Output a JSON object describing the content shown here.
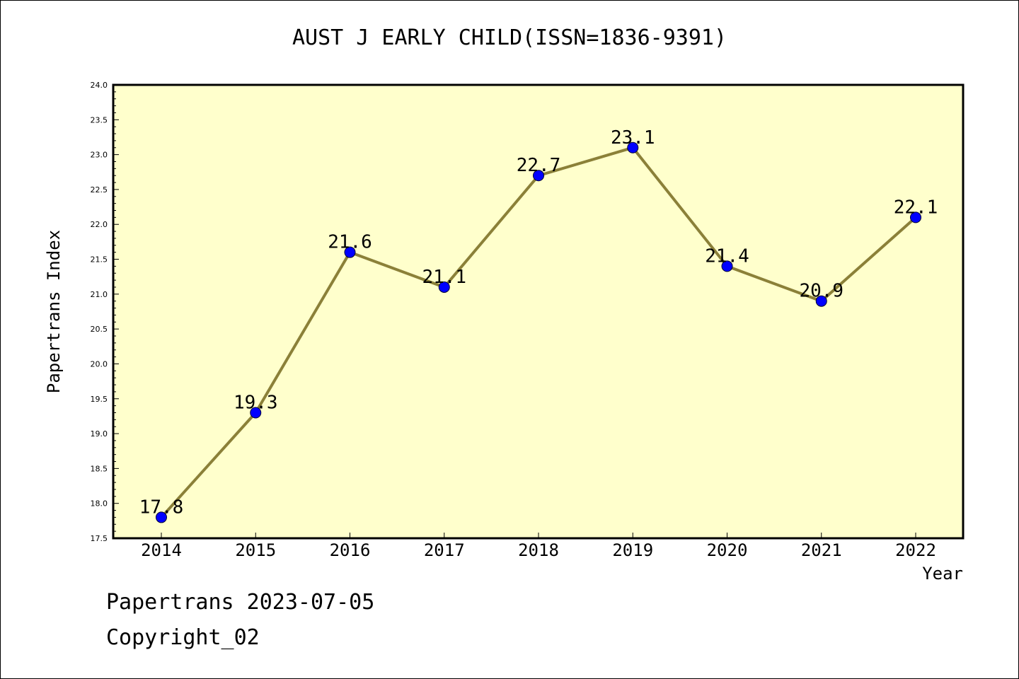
{
  "chart_data": {
    "type": "line",
    "title": "AUST J EARLY CHILD(ISSN=1836-9391)",
    "xlabel": "Year",
    "ylabel": "Papertrans Index",
    "categories": [
      "2014",
      "2015",
      "2016",
      "2017",
      "2018",
      "2019",
      "2020",
      "2021",
      "2022"
    ],
    "series": [
      {
        "values": [
          17.8,
          19.3,
          21.6,
          21.1,
          22.7,
          23.1,
          21.4,
          20.9,
          22.1
        ]
      }
    ],
    "data_labels": [
      "17.8",
      "19.3",
      "21.6",
      "21.1",
      "22.7",
      "23.1",
      "21.4",
      "20.9",
      "22.1"
    ],
    "ylim": [
      17.5,
      24.0
    ],
    "yticks": [
      "17.5",
      "18.0",
      "18.5",
      "19.0",
      "19.5",
      "20.0",
      "20.5",
      "21.0",
      "21.5",
      "22.0",
      "22.5",
      "23.0",
      "23.5",
      "24.0"
    ],
    "grid": false,
    "legend": "none",
    "colors": {
      "plot_background": "#ffffcc",
      "line": "#8b8038",
      "marker": "#0000ff"
    }
  },
  "footer": {
    "date_line": "Papertrans 2023-07-05",
    "copyright_line": "Copyright_02"
  }
}
